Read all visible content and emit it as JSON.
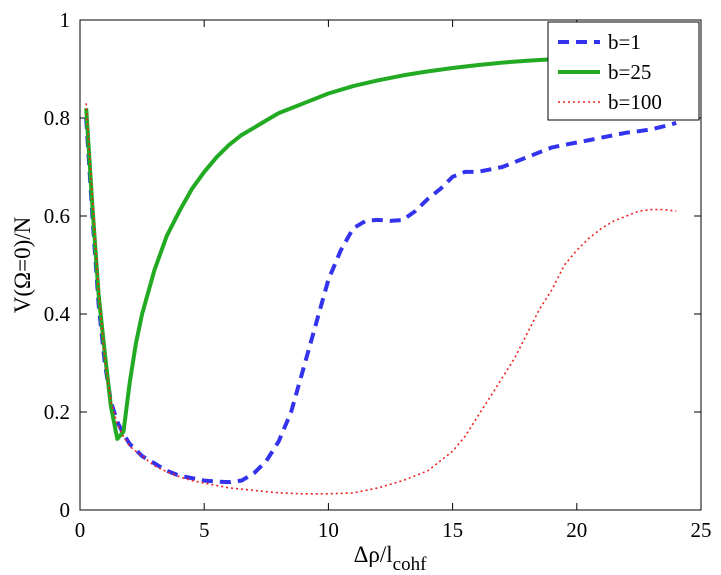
{
  "chart_data": {
    "type": "line",
    "title": "",
    "xlabel_main": "Δρ/l",
    "xlabel_sub": "cohf",
    "ylabel": "V(Ω=0)/N",
    "xlim": [
      0,
      25
    ],
    "ylim": [
      0,
      1
    ],
    "x_ticks": [
      "0",
      "5",
      "10",
      "15",
      "20",
      "25"
    ],
    "y_ticks": [
      "0",
      "0.2",
      "0.4",
      "0.6",
      "0.8",
      "1"
    ],
    "grid": false,
    "legend_position": "top-right",
    "series": [
      {
        "name": "b=1",
        "color": "#3333ee",
        "style": "dashed",
        "x": [
          0.25,
          0.5,
          0.75,
          1.0,
          1.25,
          1.5,
          1.75,
          2.0,
          2.5,
          3.0,
          3.5,
          4.0,
          4.5,
          5.0,
          5.5,
          6.0,
          6.5,
          7.0,
          7.5,
          8.0,
          8.5,
          9.0,
          9.5,
          10.0,
          10.5,
          11.0,
          11.5,
          12.0,
          12.5,
          13.0,
          13.5,
          14.0,
          14.5,
          15.0,
          15.5,
          16.0,
          16.5,
          17.0,
          17.5,
          18.0,
          18.5,
          19.0,
          19.5,
          20.0,
          20.5,
          21.0,
          21.5,
          22.0,
          22.5,
          23.0,
          23.5,
          24.0
        ],
        "y": [
          0.8,
          0.6,
          0.42,
          0.3,
          0.22,
          0.18,
          0.155,
          0.135,
          0.11,
          0.095,
          0.08,
          0.07,
          0.065,
          0.06,
          0.058,
          0.057,
          0.06,
          0.075,
          0.1,
          0.14,
          0.2,
          0.29,
          0.38,
          0.47,
          0.53,
          0.575,
          0.59,
          0.592,
          0.59,
          0.592,
          0.61,
          0.635,
          0.655,
          0.68,
          0.69,
          0.69,
          0.695,
          0.7,
          0.71,
          0.72,
          0.73,
          0.74,
          0.745,
          0.75,
          0.755,
          0.76,
          0.765,
          0.77,
          0.773,
          0.777,
          0.783,
          0.79
        ]
      },
      {
        "name": "b=25",
        "color": "#22aa22",
        "style": "solid",
        "x": [
          0.25,
          0.5,
          0.75,
          1.0,
          1.25,
          1.5,
          1.75,
          2.0,
          2.25,
          2.5,
          3.0,
          3.5,
          4.0,
          4.5,
          5.0,
          5.5,
          6.0,
          6.5,
          7.0,
          7.5,
          8.0,
          9.0,
          10.0,
          11.0,
          12.0,
          13.0,
          14.0,
          15.0,
          16.0,
          17.0,
          18.0,
          19.0
        ],
        "y": [
          0.82,
          0.62,
          0.44,
          0.32,
          0.21,
          0.145,
          0.16,
          0.26,
          0.34,
          0.4,
          0.49,
          0.56,
          0.61,
          0.655,
          0.69,
          0.72,
          0.745,
          0.765,
          0.78,
          0.795,
          0.81,
          0.83,
          0.85,
          0.865,
          0.877,
          0.887,
          0.895,
          0.902,
          0.908,
          0.913,
          0.917,
          0.92
        ]
      },
      {
        "name": "b=100",
        "color": "#ee2222",
        "style": "dotted",
        "x": [
          0.25,
          0.5,
          0.75,
          1.0,
          1.25,
          1.5,
          1.75,
          2.0,
          2.5,
          3.0,
          3.5,
          4.0,
          4.5,
          5.0,
          6.0,
          7.0,
          8.0,
          9.0,
          10.0,
          11.0,
          12.0,
          13.0,
          14.0,
          14.5,
          15.0,
          15.5,
          16.0,
          16.5,
          17.0,
          17.5,
          18.0,
          18.5,
          19.0,
          19.5,
          20.0,
          20.5,
          21.0,
          21.5,
          22.0,
          22.5,
          23.0,
          23.5,
          24.0
        ],
        "y": [
          0.83,
          0.64,
          0.45,
          0.31,
          0.22,
          0.175,
          0.15,
          0.13,
          0.11,
          0.09,
          0.078,
          0.068,
          0.06,
          0.055,
          0.045,
          0.04,
          0.035,
          0.033,
          0.033,
          0.035,
          0.045,
          0.06,
          0.08,
          0.1,
          0.12,
          0.15,
          0.19,
          0.23,
          0.27,
          0.31,
          0.36,
          0.41,
          0.45,
          0.5,
          0.53,
          0.555,
          0.575,
          0.59,
          0.6,
          0.61,
          0.613,
          0.613,
          0.61
        ]
      }
    ]
  }
}
